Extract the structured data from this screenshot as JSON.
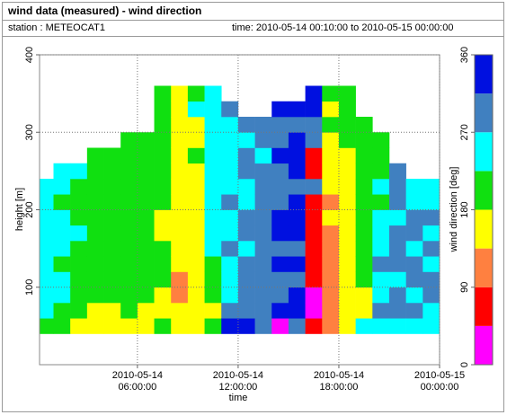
{
  "header": {
    "title": "wind data (measured) - wind direction",
    "station": "station : METEOCAT1",
    "time": "time: 2010-05-14 00:10:00 to 2010-05-15 00:00:00"
  },
  "chart_data": {
    "type": "heatmap",
    "xlabel": "time",
    "ylabel": "height [m]",
    "colorbar_label": "wind direction [deg]",
    "xlim": [
      0.17,
      24
    ],
    "ylim": [
      0,
      400
    ],
    "xticks": [
      {
        "value": 6,
        "label": "2010-05-14 06:00:00"
      },
      {
        "value": 12,
        "label": "2010-05-14 12:00:00"
      },
      {
        "value": 18,
        "label": "2010-05-14 18:00:00"
      },
      {
        "value": 24,
        "label": "2010-05-15 00:00:00"
      }
    ],
    "yticks": [
      100,
      200,
      300,
      400
    ],
    "grid": true,
    "levels": [
      0,
      45,
      90,
      135,
      180,
      225,
      270,
      315,
      360
    ],
    "colors": [
      "#ff00ff",
      "#ff0000",
      "#ff8040",
      "#ffff00",
      "#10e010",
      "#00ffff",
      "#4080c0",
      "#0010e0"
    ],
    "colorbar_ticks": [
      0,
      90,
      180,
      270,
      360
    ],
    "x": [
      0,
      1,
      2,
      3,
      4,
      5,
      6,
      7,
      8,
      9,
      10,
      11,
      12,
      13,
      14,
      15,
      16,
      17,
      18,
      19,
      20,
      21,
      22,
      23
    ],
    "y": [
      40,
      60,
      80,
      100,
      120,
      140,
      160,
      180,
      200,
      220,
      240,
      260,
      280,
      300,
      320,
      340
    ],
    "z": [
      [
        200,
        250,
        250,
        250,
        250,
        250,
        250,
        250,
        250,
        250,
        null,
        null,
        null,
        null,
        null,
        null
      ],
      [
        200,
        200,
        250,
        250,
        200,
        250,
        250,
        250,
        200,
        250,
        250,
        null,
        null,
        null,
        null,
        null
      ],
      [
        160,
        200,
        200,
        200,
        200,
        200,
        250,
        200,
        200,
        200,
        250,
        null,
        null,
        null,
        null,
        null
      ],
      [
        160,
        160,
        200,
        200,
        200,
        200,
        200,
        200,
        200,
        200,
        200,
        200,
        null,
        null,
        null,
        null
      ],
      [
        160,
        160,
        200,
        200,
        200,
        200,
        200,
        200,
        200,
        200,
        200,
        200,
        null,
        null,
        null,
        null
      ],
      [
        160,
        200,
        200,
        200,
        200,
        200,
        200,
        200,
        200,
        200,
        200,
        200,
        200,
        null,
        null,
        null
      ],
      [
        160,
        160,
        200,
        200,
        200,
        200,
        200,
        200,
        200,
        200,
        200,
        200,
        200,
        null,
        null,
        null
      ],
      [
        200,
        160,
        160,
        200,
        200,
        200,
        160,
        160,
        200,
        200,
        200,
        200,
        200,
        200,
        200,
        200
      ],
      [
        160,
        160,
        110,
        110,
        160,
        160,
        160,
        160,
        160,
        160,
        160,
        160,
        160,
        160,
        160,
        160
      ],
      [
        160,
        160,
        160,
        160,
        160,
        160,
        160,
        160,
        160,
        160,
        160,
        200,
        160,
        160,
        250,
        200
      ],
      [
        200,
        160,
        200,
        200,
        200,
        250,
        250,
        250,
        250,
        250,
        250,
        250,
        250,
        250,
        250,
        250
      ],
      [
        330,
        290,
        250,
        250,
        250,
        290,
        250,
        250,
        290,
        250,
        250,
        250,
        250,
        250,
        290,
        null
      ],
      [
        330,
        290,
        290,
        290,
        290,
        250,
        290,
        290,
        250,
        250,
        290,
        290,
        250,
        290,
        null,
        null
      ],
      [
        290,
        290,
        290,
        290,
        290,
        290,
        290,
        290,
        290,
        290,
        290,
        250,
        290,
        290,
        null,
        null
      ],
      [
        20,
        330,
        290,
        290,
        330,
        290,
        330,
        330,
        290,
        290,
        290,
        330,
        290,
        290,
        330,
        null
      ],
      [
        290,
        330,
        330,
        290,
        330,
        290,
        330,
        330,
        330,
        290,
        330,
        330,
        330,
        290,
        330,
        null
      ],
      [
        60,
        20,
        20,
        60,
        60,
        60,
        60,
        60,
        60,
        290,
        60,
        60,
        290,
        290,
        330,
        330
      ],
      [
        110,
        110,
        110,
        110,
        110,
        110,
        110,
        160,
        110,
        160,
        160,
        160,
        160,
        200,
        160,
        200
      ],
      [
        160,
        160,
        160,
        160,
        160,
        160,
        160,
        160,
        160,
        160,
        160,
        160,
        200,
        200,
        200,
        200
      ],
      [
        250,
        160,
        160,
        200,
        200,
        200,
        200,
        200,
        200,
        200,
        200,
        200,
        200,
        200,
        null,
        null
      ],
      [
        250,
        290,
        250,
        250,
        290,
        250,
        250,
        250,
        200,
        250,
        200,
        200,
        200,
        null,
        null,
        null
      ],
      [
        250,
        290,
        290,
        250,
        290,
        290,
        290,
        250,
        290,
        290,
        290,
        null,
        null,
        null,
        null,
        null
      ],
      [
        250,
        290,
        250,
        290,
        290,
        250,
        290,
        290,
        250,
        250,
        null,
        null,
        null,
        null,
        null,
        null
      ],
      [
        250,
        250,
        290,
        290,
        250,
        290,
        250,
        290,
        250,
        250,
        null,
        null,
        null,
        null,
        null,
        null
      ]
    ]
  }
}
